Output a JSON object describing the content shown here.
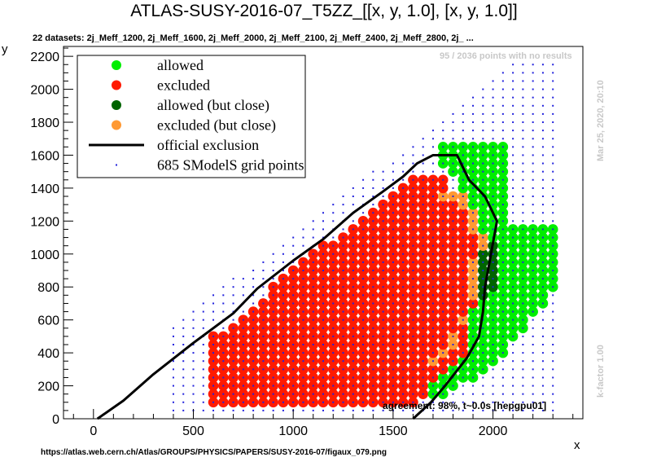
{
  "title": "ATLAS-SUSY-2016-07_T5ZZ_[[x, y, 1.0], [x, y, 1.0]]",
  "subtitle": "22 datasets: 2j_Meff_1200, 2j_Meff_1600, 2j_Meff_2000, 2j_Meff_2100, 2j_Meff_2400, 2j_Meff_2800, 2j_ ...",
  "no_results_note": "95 / 2036 points with no results",
  "timestamp": "Mar 25, 2020, 20:10",
  "kfactor": "k-factor 1.00",
  "agreement": "agreement: 98%, t~0.0s [hepgpu01]",
  "source_url": "https://atlas.web.cern.ch/Atlas/GROUPS/PHYSICS/PAPERS/SUSY-2016-07/figaux_079.png",
  "colors": {
    "allowed": "#00ee00",
    "excluded": "#ff1a00",
    "allowed_close": "#006400",
    "excluded_close": "#ff9933",
    "official": "#000000",
    "grid_points": "#2222dd"
  },
  "chart_data": {
    "type": "scatter",
    "xlabel": "x",
    "ylabel": "y",
    "xlim": [
      -150,
      2450
    ],
    "ylim": [
      0,
      2260
    ],
    "x_ticks": [
      0,
      500,
      1000,
      1500,
      2000
    ],
    "y_ticks": [
      0,
      200,
      400,
      600,
      800,
      1000,
      1200,
      1400,
      1600,
      1800,
      2000,
      2200
    ],
    "legend": {
      "position": "top-left",
      "entries": [
        {
          "key": "allowed",
          "label": "allowed"
        },
        {
          "key": "excluded",
          "label": "excluded"
        },
        {
          "key": "allowed_close",
          "label": "allowed (but close)"
        },
        {
          "key": "excluded_close",
          "label": "excluded (but close)"
        },
        {
          "key": "official",
          "label": "official exclusion"
        },
        {
          "key": "grid_points",
          "label": "685 SModelS grid points"
        }
      ]
    },
    "official_exclusion": [
      [
        20,
        0
      ],
      [
        150,
        110
      ],
      [
        300,
        270
      ],
      [
        500,
        460
      ],
      [
        700,
        640
      ],
      [
        820,
        790
      ],
      [
        1000,
        960
      ],
      [
        1150,
        1090
      ],
      [
        1300,
        1250
      ],
      [
        1450,
        1380
      ],
      [
        1550,
        1470
      ],
      [
        1620,
        1550
      ],
      [
        1700,
        1600
      ],
      [
        1820,
        1600
      ],
      [
        1880,
        1450
      ],
      [
        1960,
        1350
      ],
      [
        2020,
        1200
      ],
      [
        1990,
        1000
      ],
      [
        1960,
        800
      ],
      [
        1950,
        650
      ],
      [
        1930,
        500
      ],
      [
        1870,
        370
      ],
      [
        1760,
        200
      ],
      [
        1690,
        100
      ],
      [
        1600,
        0
      ]
    ],
    "regions": {
      "excluded": [
        [
          600,
          100
        ],
        [
          600,
          500
        ],
        [
          800,
          680
        ],
        [
          1000,
          920
        ],
        [
          1300,
          1180
        ],
        [
          1450,
          1330
        ],
        [
          1550,
          1430
        ],
        [
          1650,
          1500
        ],
        [
          1750,
          1500
        ],
        [
          1870,
          1250
        ],
        [
          1940,
          1040
        ],
        [
          1920,
          800
        ],
        [
          1890,
          600
        ],
        [
          1880,
          430
        ],
        [
          1800,
          300
        ],
        [
          1700,
          200
        ],
        [
          1650,
          100
        ]
      ],
      "allowed": [
        [
          1720,
          1680
        ],
        [
          1850,
          1680
        ],
        [
          2060,
          1680
        ],
        [
          2060,
          1170
        ],
        [
          2320,
          1170
        ],
        [
          2320,
          800
        ],
        [
          2160,
          560
        ],
        [
          2060,
          380
        ],
        [
          1950,
          250
        ],
        [
          1830,
          200
        ],
        [
          1760,
          130
        ],
        [
          1700,
          100
        ],
        [
          1680,
          350
        ],
        [
          1780,
          420
        ],
        [
          1860,
          620
        ],
        [
          1900,
          880
        ],
        [
          1940,
          1080
        ],
        [
          1870,
          1330
        ],
        [
          1800,
          1500
        ],
        [
          1730,
          1560
        ]
      ],
      "allowed_close": [
        [
          1900,
          720
        ],
        [
          1930,
          1000
        ],
        [
          2000,
          1060
        ],
        [
          2030,
          900
        ],
        [
          2010,
          780
        ],
        [
          1960,
          700
        ]
      ],
      "excluded_close": [
        [
          1730,
          1380
        ],
        [
          1800,
          1400
        ],
        [
          1870,
          1360
        ],
        [
          1930,
          1220
        ],
        [
          1960,
          1050
        ],
        [
          1930,
          850
        ],
        [
          1890,
          700
        ],
        [
          1840,
          520
        ],
        [
          1760,
          370
        ],
        [
          1710,
          300
        ],
        [
          1680,
          340
        ],
        [
          1760,
          460
        ],
        [
          1850,
          640
        ],
        [
          1880,
          850
        ],
        [
          1910,
          1050
        ],
        [
          1880,
          1240
        ],
        [
          1800,
          1330
        ],
        [
          1740,
          1350
        ]
      ]
    },
    "grid_range": {
      "x": [
        400,
        2300
      ],
      "y": [
        50,
        2150
      ]
    }
  }
}
